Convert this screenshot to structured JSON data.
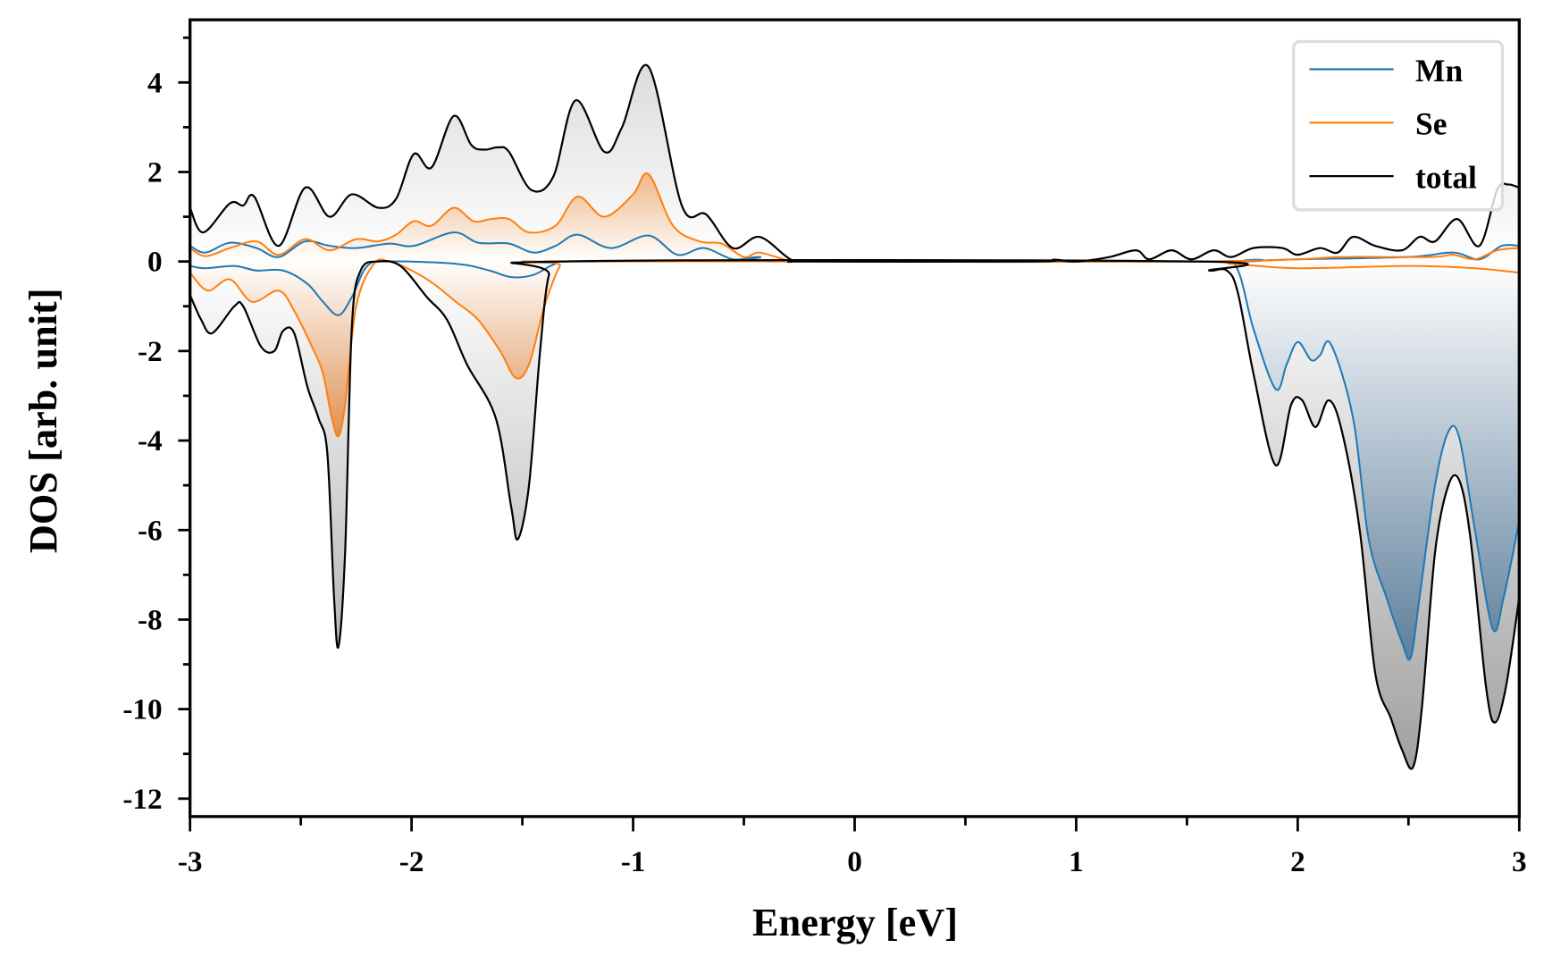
{
  "chart_data": {
    "type": "line",
    "title": "",
    "xlabel": "Energy [eV]",
    "ylabel": "DOS [arb. unit]",
    "xlim": [
      -3,
      3
    ],
    "ylim": [
      -12.4,
      5.4
    ],
    "xticks": [
      -3,
      -2,
      -1,
      0,
      1,
      2,
      3
    ],
    "xtick_labels": [
      "-3",
      "-2",
      "-1",
      "0",
      "1",
      "2",
      "3"
    ],
    "yticks": [
      -12,
      -10,
      -8,
      -6,
      -4,
      -2,
      0,
      2,
      4
    ],
    "ytick_labels": [
      "-12",
      "-10",
      "-8",
      "-6",
      "-4",
      "-2",
      "0",
      "2",
      "4"
    ],
    "grid": false,
    "legend_position": "top-right",
    "legend": [
      {
        "label": "Mn",
        "color": "#1f77b4"
      },
      {
        "label": "Se",
        "color": "#ff7f0e"
      },
      {
        "label": "total",
        "color": "#000000"
      }
    ],
    "series": [
      {
        "name": "total",
        "spin": "up",
        "color": "#000000",
        "points": [
          [
            -3,
            1.2
          ],
          [
            -2.94,
            0.65
          ],
          [
            -2.82,
            1.3
          ],
          [
            -2.76,
            1.25
          ],
          [
            -2.71,
            1.45
          ],
          [
            -2.6,
            0.35
          ],
          [
            -2.48,
            1.65
          ],
          [
            -2.37,
            1.0
          ],
          [
            -2.27,
            1.5
          ],
          [
            -2.15,
            1.2
          ],
          [
            -2.07,
            1.4
          ],
          [
            -1.99,
            2.4
          ],
          [
            -1.91,
            2.1
          ],
          [
            -1.81,
            3.25
          ],
          [
            -1.73,
            2.6
          ],
          [
            -1.67,
            2.5
          ],
          [
            -1.61,
            2.55
          ],
          [
            -1.56,
            2.45
          ],
          [
            -1.46,
            1.6
          ],
          [
            -1.36,
            1.9
          ],
          [
            -1.26,
            3.6
          ],
          [
            -1.13,
            2.45
          ],
          [
            -1.05,
            3.0
          ],
          [
            -0.93,
            4.35
          ],
          [
            -0.78,
            1.25
          ],
          [
            -0.67,
            1.05
          ],
          [
            -0.55,
            0.3
          ],
          [
            -0.43,
            0.55
          ],
          [
            -0.29,
            0.05
          ],
          [
            -0.2,
            0
          ],
          [
            0.8,
            0
          ],
          [
            0.9,
            0.04
          ],
          [
            1.0,
            0
          ],
          [
            1.15,
            0.1
          ],
          [
            1.27,
            0.25
          ],
          [
            1.33,
            0.05
          ],
          [
            1.43,
            0.25
          ],
          [
            1.52,
            0.05
          ],
          [
            1.62,
            0.25
          ],
          [
            1.7,
            0.1
          ],
          [
            1.8,
            0.3
          ],
          [
            1.93,
            0.3
          ],
          [
            2.0,
            0.15
          ],
          [
            2.1,
            0.3
          ],
          [
            2.18,
            0.2
          ],
          [
            2.25,
            0.55
          ],
          [
            2.35,
            0.35
          ],
          [
            2.47,
            0.25
          ],
          [
            2.55,
            0.55
          ],
          [
            2.62,
            0.45
          ],
          [
            2.72,
            0.95
          ],
          [
            2.82,
            0.35
          ],
          [
            2.9,
            1.6
          ],
          [
            2.95,
            1.72
          ],
          [
            3.0,
            1.65
          ]
        ]
      },
      {
        "name": "Se",
        "spin": "up",
        "color": "#ff7f0e",
        "points": [
          [
            -3,
            0.3
          ],
          [
            -2.93,
            0.12
          ],
          [
            -2.82,
            0.3
          ],
          [
            -2.7,
            0.45
          ],
          [
            -2.6,
            0.15
          ],
          [
            -2.48,
            0.5
          ],
          [
            -2.37,
            0.25
          ],
          [
            -2.25,
            0.5
          ],
          [
            -2.15,
            0.45
          ],
          [
            -2.07,
            0.6
          ],
          [
            -1.99,
            0.9
          ],
          [
            -1.91,
            0.8
          ],
          [
            -1.81,
            1.2
          ],
          [
            -1.72,
            0.9
          ],
          [
            -1.64,
            0.95
          ],
          [
            -1.56,
            0.95
          ],
          [
            -1.47,
            0.65
          ],
          [
            -1.35,
            0.8
          ],
          [
            -1.25,
            1.45
          ],
          [
            -1.13,
            1.0
          ],
          [
            -1.0,
            1.5
          ],
          [
            -0.93,
            1.95
          ],
          [
            -0.82,
            0.8
          ],
          [
            -0.7,
            0.45
          ],
          [
            -0.6,
            0.4
          ],
          [
            -0.5,
            0.1
          ],
          [
            -0.43,
            0.2
          ],
          [
            -0.3,
            0.02
          ],
          [
            -0.25,
            0
          ],
          [
            1.5,
            0
          ],
          [
            2.0,
            0.05
          ],
          [
            2.2,
            0.1
          ],
          [
            2.6,
            0.1
          ],
          [
            2.7,
            0.15
          ],
          [
            2.8,
            0.05
          ],
          [
            2.9,
            0.25
          ],
          [
            3,
            0.3
          ]
        ]
      },
      {
        "name": "Mn",
        "spin": "up",
        "color": "#1f77b4",
        "points": [
          [
            -3,
            0.35
          ],
          [
            -2.93,
            0.2
          ],
          [
            -2.82,
            0.42
          ],
          [
            -2.7,
            0.3
          ],
          [
            -2.6,
            0.1
          ],
          [
            -2.48,
            0.45
          ],
          [
            -2.37,
            0.35
          ],
          [
            -2.25,
            0.3
          ],
          [
            -2.1,
            0.4
          ],
          [
            -1.99,
            0.35
          ],
          [
            -1.81,
            0.65
          ],
          [
            -1.7,
            0.42
          ],
          [
            -1.56,
            0.4
          ],
          [
            -1.45,
            0.2
          ],
          [
            -1.35,
            0.35
          ],
          [
            -1.25,
            0.6
          ],
          [
            -1.1,
            0.3
          ],
          [
            -0.93,
            0.58
          ],
          [
            -0.8,
            0.15
          ],
          [
            -0.68,
            0.3
          ],
          [
            -0.55,
            0.05
          ],
          [
            -0.43,
            0.1
          ],
          [
            -0.3,
            0
          ],
          [
            1.5,
            0
          ],
          [
            2.0,
            0.05
          ],
          [
            2.5,
            0.1
          ],
          [
            2.7,
            0.2
          ],
          [
            2.82,
            0.05
          ],
          [
            2.92,
            0.35
          ],
          [
            3,
            0.35
          ]
        ]
      },
      {
        "name": "total",
        "spin": "down",
        "color": "#000000",
        "points": [
          [
            -3,
            -0.75
          ],
          [
            -2.95,
            -1.3
          ],
          [
            -2.9,
            -1.6
          ],
          [
            -2.8,
            -1.0
          ],
          [
            -2.76,
            -1.0
          ],
          [
            -2.68,
            -1.9
          ],
          [
            -2.62,
            -2.0
          ],
          [
            -2.58,
            -1.55
          ],
          [
            -2.53,
            -1.6
          ],
          [
            -2.47,
            -2.8
          ],
          [
            -2.42,
            -3.5
          ],
          [
            -2.38,
            -4.3
          ],
          [
            -2.35,
            -7.5
          ],
          [
            -2.33,
            -8.6
          ],
          [
            -2.3,
            -6.5
          ],
          [
            -2.27,
            -1.5
          ],
          [
            -2.23,
            -0.2
          ],
          [
            -2.15,
            0
          ],
          [
            -2.05,
            -0.1
          ],
          [
            -1.93,
            -0.8
          ],
          [
            -1.84,
            -1.3
          ],
          [
            -1.75,
            -2.3
          ],
          [
            -1.62,
            -3.5
          ],
          [
            -1.55,
            -5.5
          ],
          [
            -1.52,
            -6.2
          ],
          [
            -1.47,
            -5.0
          ],
          [
            -1.42,
            -2.0
          ],
          [
            -1.38,
            -0.3
          ],
          [
            -1.32,
            0
          ],
          [
            1.55,
            0
          ],
          [
            1.6,
            -0.2
          ],
          [
            1.68,
            -0.2
          ],
          [
            1.73,
            -0.7
          ],
          [
            1.8,
            -2.5
          ],
          [
            1.9,
            -4.55
          ],
          [
            1.97,
            -3.2
          ],
          [
            2.02,
            -3.1
          ],
          [
            2.08,
            -3.7
          ],
          [
            2.14,
            -3.1
          ],
          [
            2.2,
            -3.8
          ],
          [
            2.28,
            -6.0
          ],
          [
            2.35,
            -9.2
          ],
          [
            2.42,
            -10.2
          ],
          [
            2.47,
            -10.9
          ],
          [
            2.52,
            -11.3
          ],
          [
            2.56,
            -10.0
          ],
          [
            2.62,
            -6.5
          ],
          [
            2.68,
            -5.0
          ],
          [
            2.73,
            -4.9
          ],
          [
            2.78,
            -6.2
          ],
          [
            2.85,
            -9.5
          ],
          [
            2.89,
            -10.3
          ],
          [
            2.94,
            -9.5
          ],
          [
            3.0,
            -7.5
          ]
        ]
      },
      {
        "name": "Se",
        "spin": "down",
        "color": "#ff7f0e",
        "points": [
          [
            -3,
            -0.25
          ],
          [
            -2.92,
            -0.65
          ],
          [
            -2.82,
            -0.4
          ],
          [
            -2.72,
            -0.9
          ],
          [
            -2.6,
            -0.65
          ],
          [
            -2.53,
            -1.1
          ],
          [
            -2.45,
            -1.9
          ],
          [
            -2.4,
            -2.5
          ],
          [
            -2.36,
            -3.5
          ],
          [
            -2.33,
            -3.9
          ],
          [
            -2.3,
            -3.2
          ],
          [
            -2.25,
            -1.0
          ],
          [
            -2.17,
            -0.05
          ],
          [
            -2.1,
            0
          ],
          [
            -2.0,
            -0.2
          ],
          [
            -1.9,
            -0.5
          ],
          [
            -1.8,
            -0.9
          ],
          [
            -1.7,
            -1.3
          ],
          [
            -1.6,
            -2.0
          ],
          [
            -1.53,
            -2.6
          ],
          [
            -1.47,
            -2.3
          ],
          [
            -1.4,
            -1.0
          ],
          [
            -1.33,
            -0.1
          ],
          [
            -1.28,
            0
          ],
          [
            1.5,
            0
          ],
          [
            1.7,
            -0.05
          ],
          [
            2.0,
            -0.15
          ],
          [
            2.5,
            -0.1
          ],
          [
            2.8,
            -0.15
          ],
          [
            3,
            -0.25
          ]
        ]
      },
      {
        "name": "Mn",
        "spin": "down",
        "color": "#1f77b4",
        "points": [
          [
            -3,
            -0.1
          ],
          [
            -2.93,
            -0.15
          ],
          [
            -2.8,
            -0.1
          ],
          [
            -2.7,
            -0.2
          ],
          [
            -2.58,
            -0.2
          ],
          [
            -2.47,
            -0.5
          ],
          [
            -2.4,
            -0.9
          ],
          [
            -2.33,
            -1.2
          ],
          [
            -2.27,
            -0.8
          ],
          [
            -2.2,
            -0.1
          ],
          [
            -2.1,
            0
          ],
          [
            -1.8,
            -0.05
          ],
          [
            -1.65,
            -0.2
          ],
          [
            -1.55,
            -0.35
          ],
          [
            -1.45,
            -0.3
          ],
          [
            -1.35,
            -0.05
          ],
          [
            -1.25,
            0
          ],
          [
            1.6,
            0
          ],
          [
            1.72,
            -0.1
          ],
          [
            1.8,
            -1.5
          ],
          [
            1.9,
            -2.85
          ],
          [
            1.95,
            -2.3
          ],
          [
            2.0,
            -1.8
          ],
          [
            2.06,
            -2.2
          ],
          [
            2.1,
            -2.1
          ],
          [
            2.15,
            -1.85
          ],
          [
            2.25,
            -3.5
          ],
          [
            2.32,
            -6.2
          ],
          [
            2.4,
            -7.5
          ],
          [
            2.47,
            -8.5
          ],
          [
            2.51,
            -8.85
          ],
          [
            2.55,
            -7.5
          ],
          [
            2.62,
            -5.0
          ],
          [
            2.68,
            -3.8
          ],
          [
            2.73,
            -3.95
          ],
          [
            2.8,
            -6.0
          ],
          [
            2.88,
            -8.2
          ],
          [
            2.93,
            -7.5
          ],
          [
            3.0,
            -5.8
          ]
        ]
      }
    ]
  }
}
